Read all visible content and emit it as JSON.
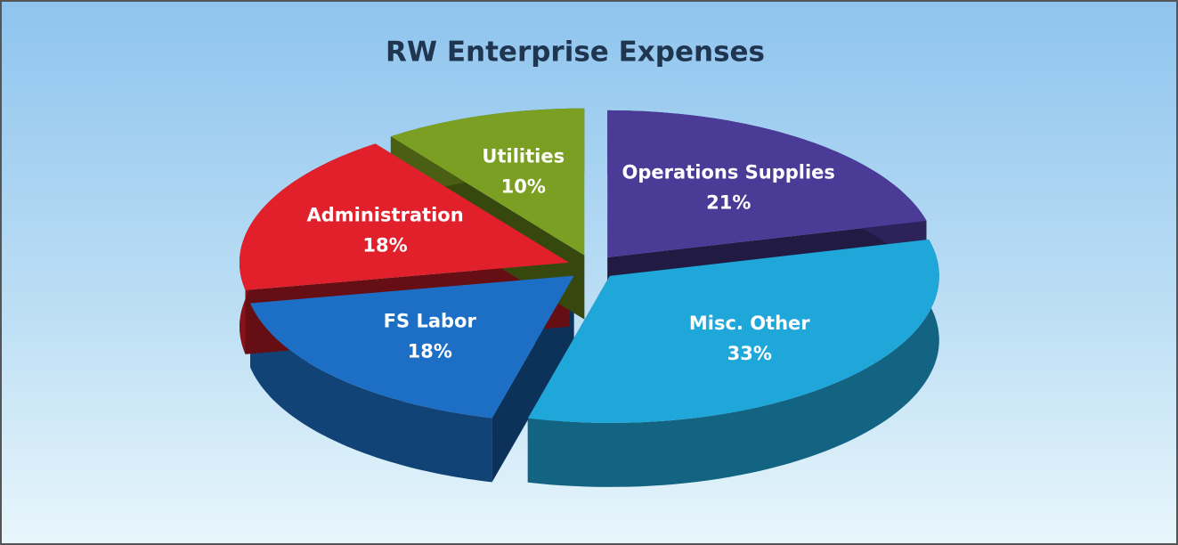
{
  "chart_data": {
    "type": "pie",
    "title": "RW Enterprise Expenses",
    "categories": [
      "Operations Supplies",
      "Misc. Other",
      "FS Labor",
      "Administration",
      "Utilities"
    ],
    "values": [
      21,
      33,
      18,
      18,
      10
    ],
    "value_labels": [
      "21%",
      "33%",
      "18%",
      "18%",
      "10%"
    ],
    "colors": [
      "#4a3b97",
      "#1fa7d9",
      "#1d6fc6",
      "#e1202b",
      "#7b9f22"
    ]
  }
}
